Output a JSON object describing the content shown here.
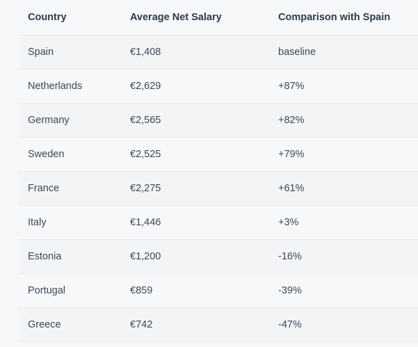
{
  "table": {
    "headers": [
      "Country",
      "Average Net Salary",
      "Comparison with Spain"
    ],
    "rows": [
      [
        "Spain",
        "€1,408",
        "baseline"
      ],
      [
        "Netherlands",
        "€2,629",
        "+87%"
      ],
      [
        "Germany",
        "€2,565",
        "+82%"
      ],
      [
        "Sweden",
        "€2,525",
        "+79%"
      ],
      [
        "France",
        "€2,275",
        "+61%"
      ],
      [
        "Italy",
        "€1,446",
        "+3%"
      ],
      [
        "Estonia",
        "€1,200",
        "-16%"
      ],
      [
        "Portugal",
        "€859",
        "-39%"
      ],
      [
        "Greece",
        "€742",
        "-47%"
      ]
    ]
  }
}
